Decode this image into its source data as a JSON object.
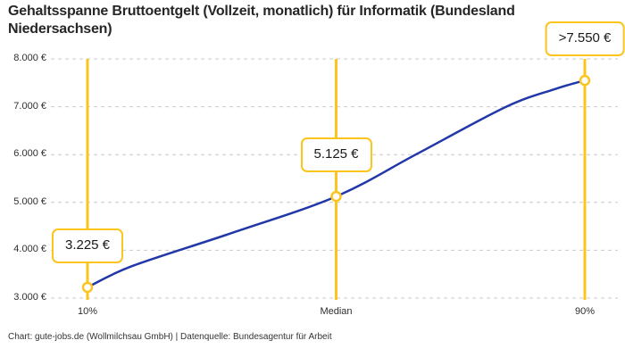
{
  "colors": {
    "accent_yellow": "#FCC41D",
    "line_blue": "#2238A8",
    "grid_gray": "#C9C9C9",
    "title_text": "#262626",
    "tick_text": "#2E2E2E"
  },
  "chart_data": {
    "type": "line",
    "title": "Gehaltsspanne Bruttoentgelt (Vollzeit, monatlich) für Informatik (Bundesland Niedersachsen)",
    "footer": "Chart: gute-jobs.de (Wollmilchsau GmbH) | Datenquelle: Bundesagentur für Arbeit",
    "xlabel": "",
    "ylabel": "",
    "ylim": [
      3000,
      8000
    ],
    "grid": "horizontal-dashed",
    "legend": "none",
    "y_ticks": [
      {
        "label": "8.000 €",
        "value": 8000
      },
      {
        "label": "7.000 €",
        "value": 7000
      },
      {
        "label": "6.000 €",
        "value": 6000
      },
      {
        "label": "5.000 €",
        "value": 5000
      },
      {
        "label": "4.000 €",
        "value": 4000
      },
      {
        "label": "3.000 €",
        "value": 3000
      }
    ],
    "x_ticks": [
      {
        "label": "10%",
        "x": 0
      },
      {
        "label": "Median",
        "x": 0.5
      },
      {
        "label": "90%",
        "x": 1
      }
    ],
    "series": [
      {
        "points": [
          {
            "x": 0.0,
            "value": 3225
          },
          {
            "x": 0.09,
            "value": 3670
          },
          {
            "x": 0.29,
            "value": 4360
          },
          {
            "x": 0.5,
            "value": 5125
          },
          {
            "x": 0.66,
            "value": 6000
          },
          {
            "x": 0.84,
            "value": 6990
          },
          {
            "x": 0.94,
            "value": 7370
          },
          {
            "x": 1.0,
            "value": 7550
          }
        ]
      }
    ],
    "annotations": [
      {
        "x": 0,
        "value": 3225,
        "label": "3.225 €"
      },
      {
        "x": 0.5,
        "value": 5125,
        "label": "5.125 €"
      },
      {
        "x": 1,
        "value": 7550,
        "label": ">7.550 €"
      }
    ]
  }
}
